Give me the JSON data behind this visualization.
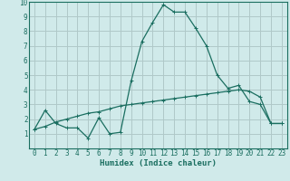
{
  "xlabel": "Humidex (Indice chaleur)",
  "xlim": [
    -0.5,
    23.5
  ],
  "ylim": [
    0,
    10
  ],
  "xticks": [
    0,
    1,
    2,
    3,
    4,
    5,
    6,
    7,
    8,
    9,
    10,
    11,
    12,
    13,
    14,
    15,
    16,
    17,
    18,
    19,
    20,
    21,
    22,
    23
  ],
  "yticks": [
    1,
    2,
    3,
    4,
    5,
    6,
    7,
    8,
    9,
    10
  ],
  "bg_color": "#d0eaea",
  "grid_color": "#b0c8c8",
  "line_color": "#1a6e60",
  "line1_x": [
    0,
    1,
    2,
    3,
    4,
    5,
    6,
    7,
    8,
    9,
    10,
    11,
    12,
    13,
    14,
    15,
    16,
    17,
    18,
    19,
    20,
    21,
    22,
    23
  ],
  "line1_y": [
    1.3,
    2.6,
    1.7,
    1.4,
    1.4,
    0.7,
    2.1,
    1.0,
    1.1,
    4.6,
    7.3,
    8.6,
    9.8,
    9.3,
    9.3,
    8.2,
    7.0,
    5.0,
    4.1,
    4.3,
    3.2,
    3.0,
    1.7,
    1.7
  ],
  "line2_x": [
    0,
    1,
    2,
    3,
    4,
    5,
    6,
    7,
    8,
    9,
    10,
    11,
    12,
    13,
    14,
    15,
    16,
    17,
    18,
    19,
    20,
    21,
    22,
    23
  ],
  "line2_y": [
    1.3,
    1.5,
    1.8,
    2.0,
    2.2,
    2.4,
    2.5,
    2.7,
    2.9,
    3.0,
    3.1,
    3.2,
    3.3,
    3.4,
    3.5,
    3.6,
    3.7,
    3.8,
    3.9,
    4.0,
    3.9,
    3.5,
    1.7,
    1.7
  ]
}
